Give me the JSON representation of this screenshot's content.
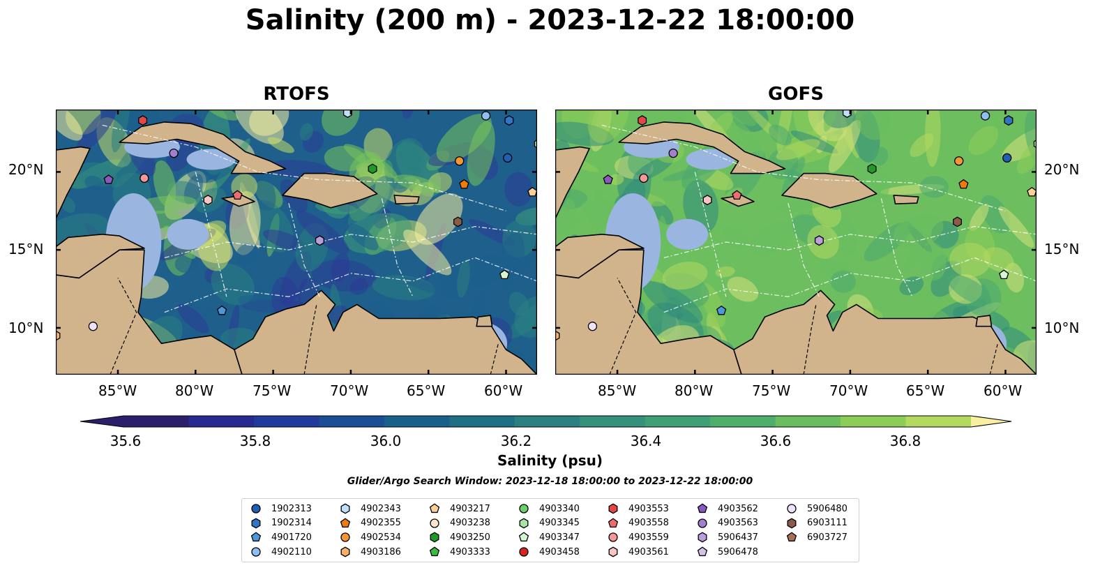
{
  "title": "Salinity (200 m) - 2023-12-22 18:00:00",
  "panels": [
    {
      "title": "RTOFS",
      "palette": "rtofs"
    },
    {
      "title": "GOFS",
      "palette": "gofs"
    }
  ],
  "lon_ticks": [
    "85°W",
    "80°W",
    "75°W",
    "70°W",
    "65°W",
    "60°W"
  ],
  "lat_ticks": [
    "20°N",
    "15°N",
    "10°N"
  ],
  "colorbar": {
    "label": "Salinity (psu)",
    "ticks": [
      "35.6",
      "35.8",
      "36.0",
      "36.2",
      "36.4",
      "36.6",
      "36.8"
    ],
    "levels": [
      35.6,
      35.7,
      35.8,
      35.9,
      36.0,
      36.1,
      36.2,
      36.3,
      36.4,
      36.5,
      36.6,
      36.7,
      36.8,
      36.9
    ],
    "colors": [
      "#2b1e6a",
      "#272a8f",
      "#213b9c",
      "#1a4f95",
      "#19608b",
      "#1f7084",
      "#2b8080",
      "#36907c",
      "#3fa076",
      "#50ae6c",
      "#6bbe60",
      "#8ccd58",
      "#b3d95e",
      "#d8e27a",
      "#f8f0a0"
    ]
  },
  "search_window": "Glider/Argo Search Window: 2023-12-18 18:00:00 to 2023-12-22 18:00:00",
  "legend": [
    {
      "id": "1902313",
      "marker": "circle",
      "color": "#1f5fb4"
    },
    {
      "id": "1902314",
      "marker": "hexagon",
      "color": "#2f77c6"
    },
    {
      "id": "4901720",
      "marker": "pentagon",
      "color": "#4a99da"
    },
    {
      "id": "4902110",
      "marker": "circle",
      "color": "#8fbff0"
    },
    {
      "id": "4902343",
      "marker": "hexagon",
      "color": "#bfe0fb"
    },
    {
      "id": "4902355",
      "marker": "pentagon",
      "color": "#f07a0a"
    },
    {
      "id": "4902534",
      "marker": "circle",
      "color": "#f59634"
    },
    {
      "id": "4903186",
      "marker": "hexagon",
      "color": "#fbb266"
    },
    {
      "id": "4903217",
      "marker": "pentagon",
      "color": "#fccf98"
    },
    {
      "id": "4903238",
      "marker": "circle",
      "color": "#fde6cc"
    },
    {
      "id": "4903250",
      "marker": "hexagon",
      "color": "#1f9a26"
    },
    {
      "id": "4903333",
      "marker": "pentagon",
      "color": "#3db945"
    },
    {
      "id": "4903340",
      "marker": "circle",
      "color": "#6ccf6c"
    },
    {
      "id": "4903345",
      "marker": "hexagon",
      "color": "#a6e6a2"
    },
    {
      "id": "4903347",
      "marker": "pentagon",
      "color": "#d4f7d0"
    },
    {
      "id": "4903458",
      "marker": "circle",
      "color": "#d62422"
    },
    {
      "id": "4903553",
      "marker": "hexagon",
      "color": "#e34848"
    },
    {
      "id": "4903558",
      "marker": "pentagon",
      "color": "#ee6e6e"
    },
    {
      "id": "4903559",
      "marker": "circle",
      "color": "#f49898"
    },
    {
      "id": "4903561",
      "marker": "hexagon",
      "color": "#f9c4c4"
    },
    {
      "id": "4903562",
      "marker": "pentagon",
      "color": "#8a58bf"
    },
    {
      "id": "4903563",
      "marker": "circle",
      "color": "#a27fcf"
    },
    {
      "id": "5906437",
      "marker": "hexagon",
      "color": "#bb9fdd"
    },
    {
      "id": "5906478",
      "marker": "pentagon",
      "color": "#d5c2ea"
    },
    {
      "id": "5906480",
      "marker": "circle",
      "color": "#efe3f7"
    },
    {
      "id": "6903111",
      "marker": "hexagon",
      "color": "#8c5a48"
    },
    {
      "id": "6903727",
      "marker": "pentagon",
      "color": "#a86e58"
    }
  ],
  "float_positions": [
    {
      "id": "1902313",
      "lon": -59.9,
      "lat": 20.9
    },
    {
      "id": "1902314",
      "lon": -59.8,
      "lat": 23.3
    },
    {
      "id": "4901720",
      "lon": -78.3,
      "lat": 11.1
    },
    {
      "id": "4902110",
      "lon": -61.3,
      "lat": 23.6
    },
    {
      "id": "4902343",
      "lon": -70.2,
      "lat": 23.8
    },
    {
      "id": "4902355",
      "lon": -62.7,
      "lat": 19.2
    },
    {
      "id": "4902534",
      "lon": -63.0,
      "lat": 20.7
    },
    {
      "id": "4903186",
      "lon": -89.0,
      "lat": 9.5
    },
    {
      "id": "4903217",
      "lon": -58.3,
      "lat": 18.7
    },
    {
      "id": "4903250",
      "lon": -68.6,
      "lat": 20.2
    },
    {
      "id": "4903345",
      "lon": -57.9,
      "lat": 21.8
    },
    {
      "id": "4903347",
      "lon": -60.1,
      "lat": 13.4
    },
    {
      "id": "4903553",
      "lon": -83.4,
      "lat": 23.3
    },
    {
      "id": "4903558",
      "lon": -77.3,
      "lat": 18.5
    },
    {
      "id": "4903559",
      "lon": -83.3,
      "lat": 19.6
    },
    {
      "id": "4903561",
      "lon": -79.2,
      "lat": 18.2
    },
    {
      "id": "4903562",
      "lon": -85.6,
      "lat": 19.5
    },
    {
      "id": "4903563",
      "lon": -81.4,
      "lat": 21.2
    },
    {
      "id": "5906437",
      "lon": -72.0,
      "lat": 15.6
    },
    {
      "id": "5906480",
      "lon": -86.6,
      "lat": 10.1
    },
    {
      "id": "6903111",
      "lon": -63.1,
      "lat": 16.8
    }
  ],
  "map_extent": {
    "lon": [
      -89,
      -58
    ],
    "lat": [
      7,
      24
    ]
  }
}
